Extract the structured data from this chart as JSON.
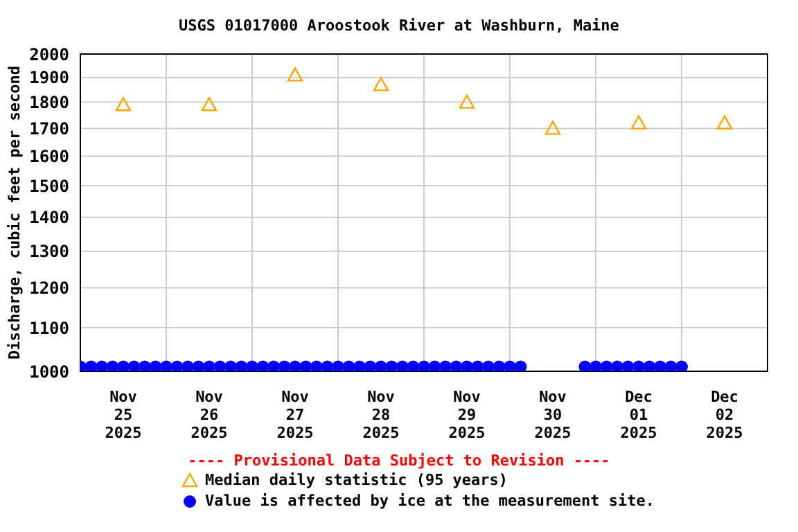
{
  "chart_data": {
    "type": "scatter",
    "title": "USGS 01017000 Aroostook River at Washburn, Maine",
    "ylabel": "Discharge, cubic feet per second",
    "log": "y",
    "grid": true,
    "legend": "bottom",
    "annotations": [
      "---- Provisional Data Subject to Revision ----"
    ],
    "xlim": [
      "2025-11-25T00:00",
      "2025-12-03T00:00"
    ],
    "xticks": [
      {
        "value": "2025-11-25T00:00",
        "label": null
      },
      {
        "value": "2025-11-25T12:00",
        "label": "Nov\n25\n2025"
      },
      {
        "value": "2025-11-26T00:00",
        "label": null
      },
      {
        "value": "2025-11-26T12:00",
        "label": "Nov\n26\n2025"
      },
      {
        "value": "2025-11-27T00:00",
        "label": null
      },
      {
        "value": "2025-11-27T12:00",
        "label": "Nov\n27\n2025"
      },
      {
        "value": "2025-11-28T00:00",
        "label": null
      },
      {
        "value": "2025-11-28T12:00",
        "label": "Nov\n28\n2025"
      },
      {
        "value": "2025-11-29T00:00",
        "label": null
      },
      {
        "value": "2025-11-29T12:00",
        "label": "Nov\n29\n2025"
      },
      {
        "value": "2025-11-30T00:00",
        "label": null
      },
      {
        "value": "2025-11-30T12:00",
        "label": "Nov\n30\n2025"
      },
      {
        "value": "2025-12-01T00:00",
        "label": null
      },
      {
        "value": "2025-12-01T12:00",
        "label": "Dec\n01\n2025"
      },
      {
        "value": "2025-12-02T00:00",
        "label": null
      },
      {
        "value": "2025-12-02T12:00",
        "label": "Dec\n02\n2025"
      },
      {
        "value": "2025-12-03T00:00",
        "label": null
      }
    ],
    "ylim": [
      1000,
      2000
    ],
    "yticks": [
      1000,
      1100,
      1200,
      1300,
      1400,
      1500,
      1600,
      1700,
      1800,
      1900,
      2000
    ],
    "series": [
      {
        "name": "Median daily statistic (95 years)",
        "color": "#ffa500",
        "marker": "triangle",
        "x": [
          "2025-11-25T12:00",
          "2025-11-26T12:00",
          "2025-11-27T12:00",
          "2025-11-28T12:00",
          "2025-11-29T12:00",
          "2025-11-30T12:00",
          "2025-12-01T12:00",
          "2025-12-02T12:00"
        ],
        "values": [
          1790,
          1790,
          1910,
          1870,
          1800,
          1700,
          1720,
          1720
        ]
      },
      {
        "name": "Value is affected by ice at the measurement site.",
        "color": "#0000ff",
        "marker": "circle",
        "x": [
          "2025-11-25T00:00",
          "2025-11-25T03:00",
          "2025-11-25T06:00",
          "2025-11-25T09:00",
          "2025-11-25T12:00",
          "2025-11-25T15:00",
          "2025-11-25T18:00",
          "2025-11-25T21:00",
          "2025-11-26T00:00",
          "2025-11-26T03:00",
          "2025-11-26T06:00",
          "2025-11-26T09:00",
          "2025-11-26T12:00",
          "2025-11-26T15:00",
          "2025-11-26T18:00",
          "2025-11-26T21:00",
          "2025-11-27T00:00",
          "2025-11-27T03:00",
          "2025-11-27T06:00",
          "2025-11-27T09:00",
          "2025-11-27T12:00",
          "2025-11-27T15:00",
          "2025-11-27T18:00",
          "2025-11-27T21:00",
          "2025-11-28T00:00",
          "2025-11-28T03:00",
          "2025-11-28T06:00",
          "2025-11-28T09:00",
          "2025-11-28T12:00",
          "2025-11-28T15:00",
          "2025-11-28T18:00",
          "2025-11-28T21:00",
          "2025-11-29T00:00",
          "2025-11-29T03:00",
          "2025-11-29T06:00",
          "2025-11-29T09:00",
          "2025-11-29T12:00",
          "2025-11-29T15:00",
          "2025-11-29T18:00",
          "2025-11-29T21:00",
          "2025-11-30T00:00",
          "2025-11-30T03:00",
          "2025-11-30T21:00",
          "2025-12-01T00:00",
          "2025-12-01T03:00",
          "2025-12-01T06:00",
          "2025-12-01T09:00",
          "2025-12-01T12:00",
          "2025-12-01T15:00",
          "2025-12-01T18:00",
          "2025-12-01T21:00",
          "2025-12-02T00:00"
        ],
        "values": [
          1010,
          1010,
          1010,
          1010,
          1010,
          1010,
          1010,
          1010,
          1010,
          1010,
          1010,
          1010,
          1010,
          1010,
          1010,
          1010,
          1010,
          1010,
          1010,
          1010,
          1010,
          1010,
          1010,
          1010,
          1010,
          1010,
          1010,
          1010,
          1010,
          1010,
          1010,
          1010,
          1010,
          1010,
          1010,
          1010,
          1010,
          1010,
          1010,
          1010,
          1010,
          1010,
          1010,
          1010,
          1010,
          1010,
          1010,
          1010,
          1010,
          1010,
          1010,
          1010
        ]
      }
    ]
  }
}
